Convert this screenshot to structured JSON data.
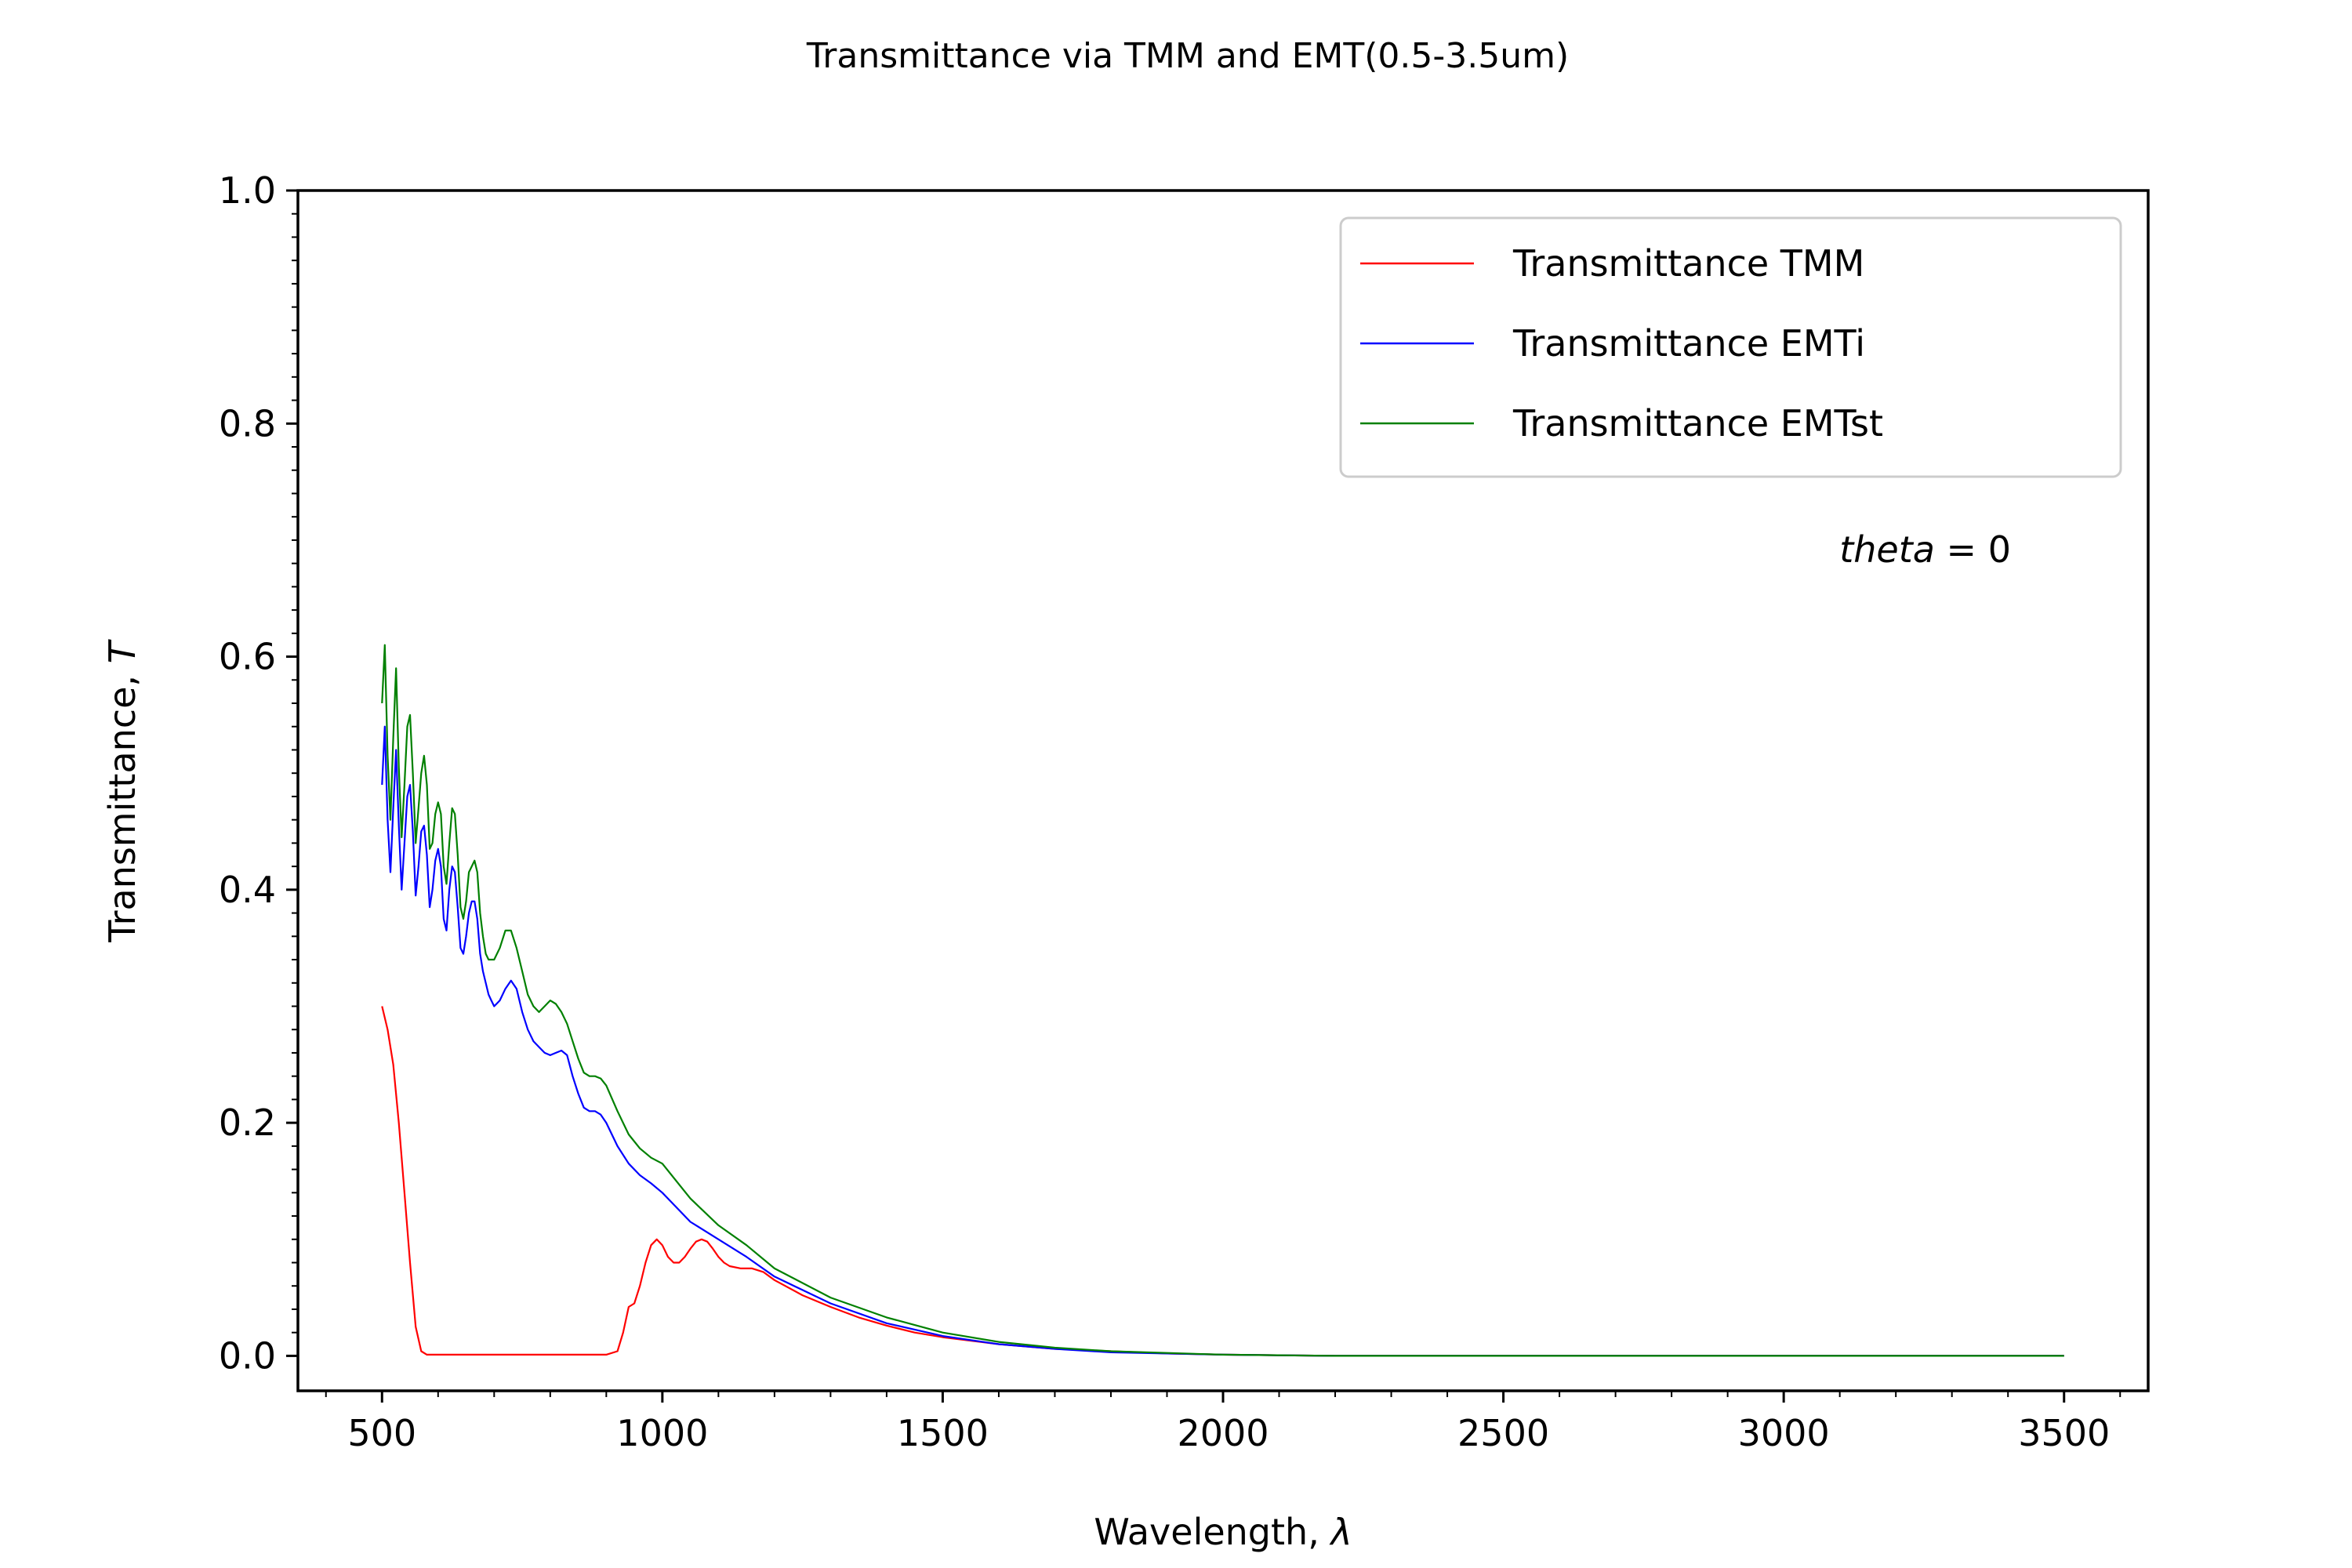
{
  "chart_data": {
    "type": "line",
    "title": "Transmittance via TMM and EMT(0.5-3.5um)",
    "xlabel": "Wavelength, λ",
    "ylabel": "Transmittance, T",
    "xlim": [
      350,
      3650
    ],
    "ylim": [
      -0.03,
      1.0
    ],
    "xticks": [
      500,
      1000,
      1500,
      2000,
      2500,
      3000,
      3500
    ],
    "yticks": [
      0.0,
      0.2,
      0.4,
      0.6,
      0.8,
      1.0
    ],
    "xtick_labels": [
      "500",
      "1000",
      "1500",
      "2000",
      "2500",
      "3000",
      "3500"
    ],
    "ytick_labels": [
      "0.0",
      "0.2",
      "0.4",
      "0.6",
      "0.8",
      "1.0"
    ],
    "grid": false,
    "legend_position": "top-right",
    "annotation": {
      "var": "theta",
      "rest": " = 0",
      "x": 3250,
      "y": 0.69
    },
    "series": [
      {
        "name": "Transmittance TMM",
        "color": "#ff0000",
        "x": [
          500,
          510,
          520,
          530,
          540,
          550,
          560,
          570,
          580,
          590,
          600,
          650,
          700,
          750,
          800,
          850,
          900,
          920,
          930,
          940,
          950,
          960,
          970,
          980,
          990,
          1000,
          1010,
          1020,
          1030,
          1040,
          1050,
          1060,
          1070,
          1080,
          1090,
          1100,
          1110,
          1120,
          1140,
          1160,
          1180,
          1200,
          1250,
          1300,
          1350,
          1400,
          1450,
          1500,
          1600,
          1700,
          1800,
          1900,
          2000,
          2200,
          2500,
          3000,
          3500
        ],
        "y": [
          0.3,
          0.28,
          0.25,
          0.2,
          0.14,
          0.08,
          0.025,
          0.004,
          0.001,
          0.001,
          0.001,
          0.001,
          0.001,
          0.001,
          0.001,
          0.001,
          0.001,
          0.004,
          0.02,
          0.042,
          0.045,
          0.06,
          0.08,
          0.095,
          0.1,
          0.095,
          0.085,
          0.08,
          0.08,
          0.085,
          0.092,
          0.098,
          0.1,
          0.098,
          0.092,
          0.085,
          0.08,
          0.077,
          0.075,
          0.075,
          0.072,
          0.065,
          0.052,
          0.042,
          0.033,
          0.026,
          0.02,
          0.016,
          0.01,
          0.006,
          0.004,
          0.002,
          0.001,
          0.0,
          0.0,
          0.0,
          0.0
        ]
      },
      {
        "name": "Transmittance EMTi",
        "color": "#0000ff",
        "x": [
          500,
          505,
          510,
          515,
          520,
          525,
          530,
          535,
          540,
          545,
          550,
          555,
          560,
          565,
          570,
          575,
          580,
          585,
          590,
          595,
          600,
          605,
          610,
          615,
          620,
          625,
          630,
          635,
          640,
          645,
          650,
          655,
          660,
          665,
          670,
          675,
          680,
          685,
          690,
          695,
          700,
          710,
          720,
          730,
          740,
          750,
          760,
          770,
          780,
          790,
          800,
          810,
          820,
          830,
          840,
          850,
          860,
          870,
          880,
          890,
          900,
          920,
          940,
          960,
          980,
          1000,
          1050,
          1100,
          1150,
          1200,
          1300,
          1400,
          1500,
          1600,
          1700,
          1800,
          2000,
          2200,
          2500,
          3000,
          3500
        ],
        "y": [
          0.49,
          0.54,
          0.46,
          0.415,
          0.47,
          0.52,
          0.455,
          0.4,
          0.44,
          0.48,
          0.49,
          0.45,
          0.395,
          0.42,
          0.45,
          0.455,
          0.43,
          0.385,
          0.4,
          0.425,
          0.435,
          0.42,
          0.375,
          0.365,
          0.4,
          0.42,
          0.415,
          0.385,
          0.35,
          0.345,
          0.36,
          0.38,
          0.39,
          0.39,
          0.375,
          0.345,
          0.33,
          0.32,
          0.31,
          0.305,
          0.3,
          0.305,
          0.315,
          0.322,
          0.315,
          0.295,
          0.28,
          0.27,
          0.265,
          0.26,
          0.258,
          0.26,
          0.262,
          0.258,
          0.24,
          0.225,
          0.213,
          0.21,
          0.21,
          0.207,
          0.2,
          0.18,
          0.165,
          0.155,
          0.148,
          0.14,
          0.115,
          0.1,
          0.085,
          0.068,
          0.045,
          0.028,
          0.017,
          0.01,
          0.006,
          0.003,
          0.001,
          0.0,
          0.0,
          0.0,
          0.0
        ]
      },
      {
        "name": "Transmittance EMTst",
        "color": "#008000",
        "x": [
          500,
          505,
          510,
          515,
          520,
          525,
          530,
          535,
          540,
          545,
          550,
          555,
          560,
          565,
          570,
          575,
          580,
          585,
          590,
          595,
          600,
          605,
          610,
          615,
          620,
          625,
          630,
          635,
          640,
          645,
          650,
          655,
          660,
          665,
          670,
          675,
          680,
          685,
          690,
          695,
          700,
          710,
          720,
          730,
          740,
          750,
          760,
          770,
          780,
          790,
          800,
          810,
          820,
          830,
          840,
          850,
          860,
          870,
          880,
          890,
          900,
          920,
          940,
          960,
          980,
          1000,
          1050,
          1100,
          1150,
          1200,
          1300,
          1400,
          1500,
          1600,
          1700,
          1800,
          2000,
          2200,
          2500,
          3000,
          3500
        ],
        "y": [
          0.56,
          0.61,
          0.515,
          0.46,
          0.53,
          0.59,
          0.505,
          0.445,
          0.49,
          0.54,
          0.55,
          0.5,
          0.44,
          0.47,
          0.5,
          0.515,
          0.49,
          0.435,
          0.44,
          0.465,
          0.475,
          0.465,
          0.42,
          0.405,
          0.44,
          0.47,
          0.465,
          0.43,
          0.385,
          0.375,
          0.39,
          0.415,
          0.42,
          0.425,
          0.415,
          0.38,
          0.36,
          0.345,
          0.34,
          0.34,
          0.34,
          0.35,
          0.365,
          0.365,
          0.35,
          0.33,
          0.31,
          0.3,
          0.295,
          0.3,
          0.305,
          0.302,
          0.295,
          0.285,
          0.27,
          0.255,
          0.243,
          0.24,
          0.24,
          0.238,
          0.232,
          0.21,
          0.19,
          0.178,
          0.17,
          0.165,
          0.135,
          0.112,
          0.095,
          0.075,
          0.05,
          0.033,
          0.02,
          0.012,
          0.007,
          0.004,
          0.001,
          0.0,
          0.0,
          0.0,
          0.0
        ]
      }
    ]
  }
}
